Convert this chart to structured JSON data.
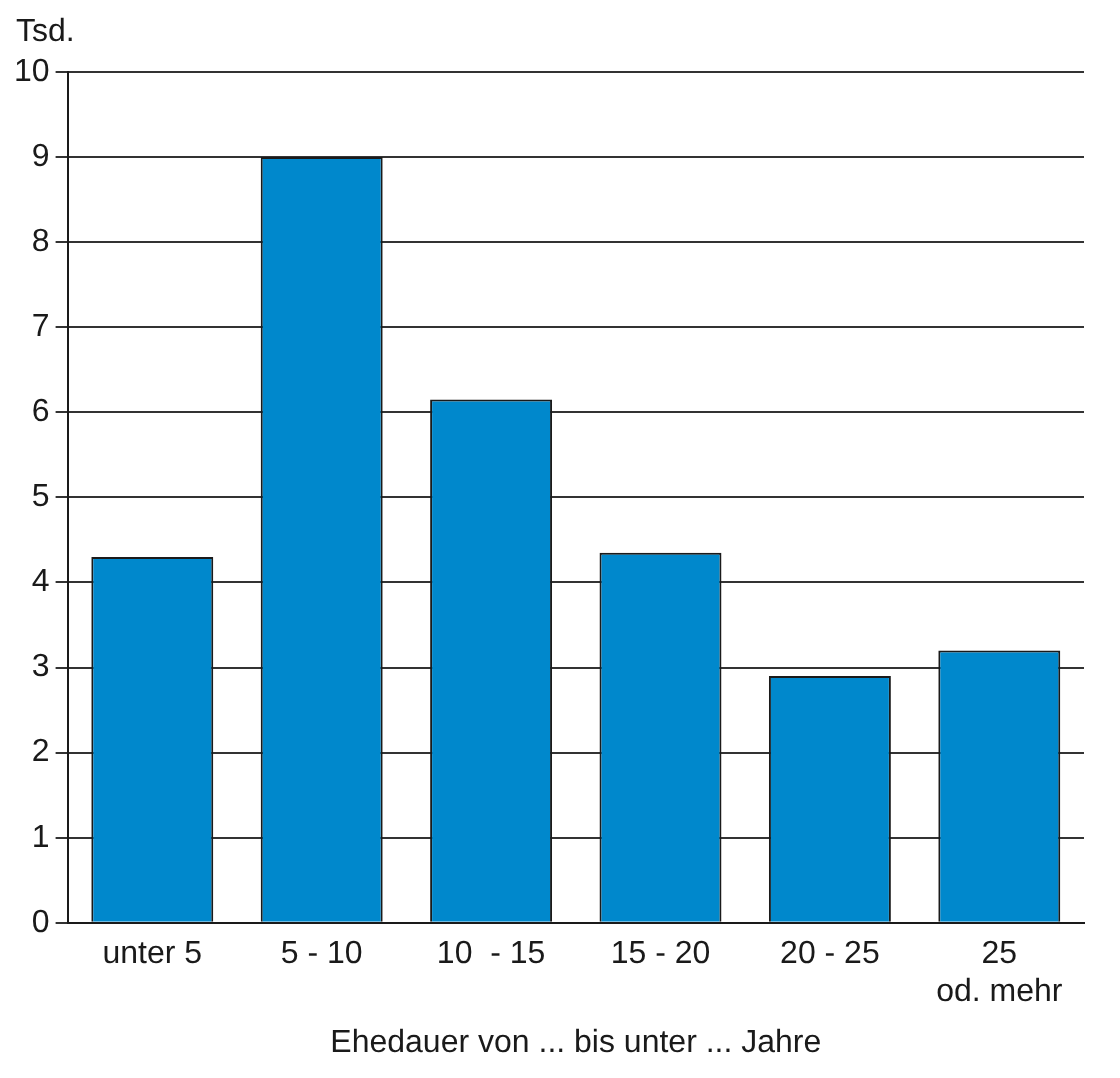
{
  "chart_data": {
    "type": "bar",
    "ylabel": "Tsd.",
    "xlabel": "Ehedauer von ... bis unter ... Jahre",
    "categories": [
      "unter 5",
      "5 - 10",
      "10  - 15",
      "15 - 20",
      "20 - 25",
      "25\nod. mehr"
    ],
    "values": [
      4.3,
      9.0,
      6.15,
      4.35,
      2.9,
      3.2
    ],
    "color": "#0088cc",
    "ylim": [
      0,
      10
    ],
    "yticks": [
      0,
      1,
      2,
      3,
      4,
      5,
      6,
      7,
      8,
      9,
      10
    ],
    "grid": "y",
    "legend": false
  }
}
